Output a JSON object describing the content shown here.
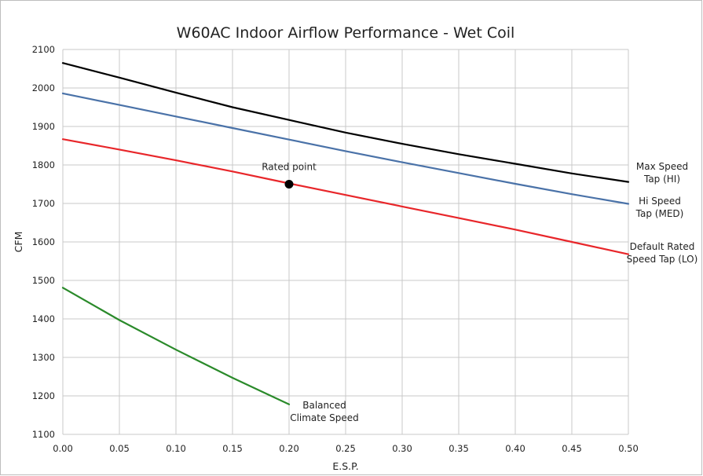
{
  "chart_data": {
    "type": "line",
    "title": "W60AC Indoor Airflow Performance - Wet Coil",
    "xlabel": "E.S.P.",
    "ylabel": "CFM",
    "xlim": [
      0,
      0.5
    ],
    "ylim": [
      1100,
      2100
    ],
    "x_ticks": [
      0.0,
      0.05,
      0.1,
      0.15,
      0.2,
      0.25,
      0.3,
      0.35,
      0.4,
      0.45,
      0.5
    ],
    "x_tick_labels": [
      "0.00",
      "0.05",
      "0.10",
      "0.15",
      "0.20",
      "0.25",
      "0.30",
      "0.35",
      "0.40",
      "0.45",
      "0.50"
    ],
    "y_ticks": [
      1100,
      1200,
      1300,
      1400,
      1500,
      1600,
      1700,
      1800,
      1900,
      2000,
      2100
    ],
    "y_tick_labels": [
      "1100",
      "1200",
      "1300",
      "1400",
      "1500",
      "1600",
      "1700",
      "1800",
      "1900",
      "2000",
      "2100"
    ],
    "grid": true,
    "legend": "none",
    "series": [
      {
        "key": "max",
        "label_lines": [
          "Max Speed",
          "Tap (HI)"
        ],
        "color": "#000000",
        "x": [
          0.0,
          0.05,
          0.1,
          0.15,
          0.2,
          0.25,
          0.3,
          0.35,
          0.4,
          0.45,
          0.5
        ],
        "y": [
          2065,
          2027,
          1988,
          1950,
          1917,
          1884,
          1855,
          1828,
          1803,
          1778,
          1756
        ]
      },
      {
        "key": "hi",
        "label_lines": [
          "Hi Speed",
          "Tap (MED)"
        ],
        "color": "#4a72a8",
        "x": [
          0.0,
          0.05,
          0.1,
          0.15,
          0.2,
          0.25,
          0.3,
          0.35,
          0.4,
          0.45,
          0.5
        ],
        "y": [
          1986,
          1956,
          1926,
          1896,
          1866,
          1836,
          1807,
          1779,
          1751,
          1724,
          1699
        ]
      },
      {
        "key": "default",
        "label_lines": [
          "Default Rated",
          "Speed Tap (LO)"
        ],
        "color": "#e8262a",
        "x": [
          0.0,
          0.05,
          0.1,
          0.15,
          0.2,
          0.25,
          0.3,
          0.35,
          0.4,
          0.45,
          0.5
        ],
        "y": [
          1867,
          1840,
          1812,
          1783,
          1752,
          1722,
          1692,
          1662,
          1632,
          1600,
          1568
        ]
      },
      {
        "key": "balanced",
        "label_lines": [
          "Balanced",
          "Climate Speed"
        ],
        "color": "#2a8a2a",
        "x": [
          0.0,
          0.05,
          0.1,
          0.15,
          0.2
        ],
        "y": [
          1481,
          1397,
          1320,
          1247,
          1178
        ]
      }
    ],
    "annotations": [
      {
        "label": "Rated point",
        "x": 0.2,
        "y": 1750,
        "color": "#000000"
      }
    ]
  }
}
